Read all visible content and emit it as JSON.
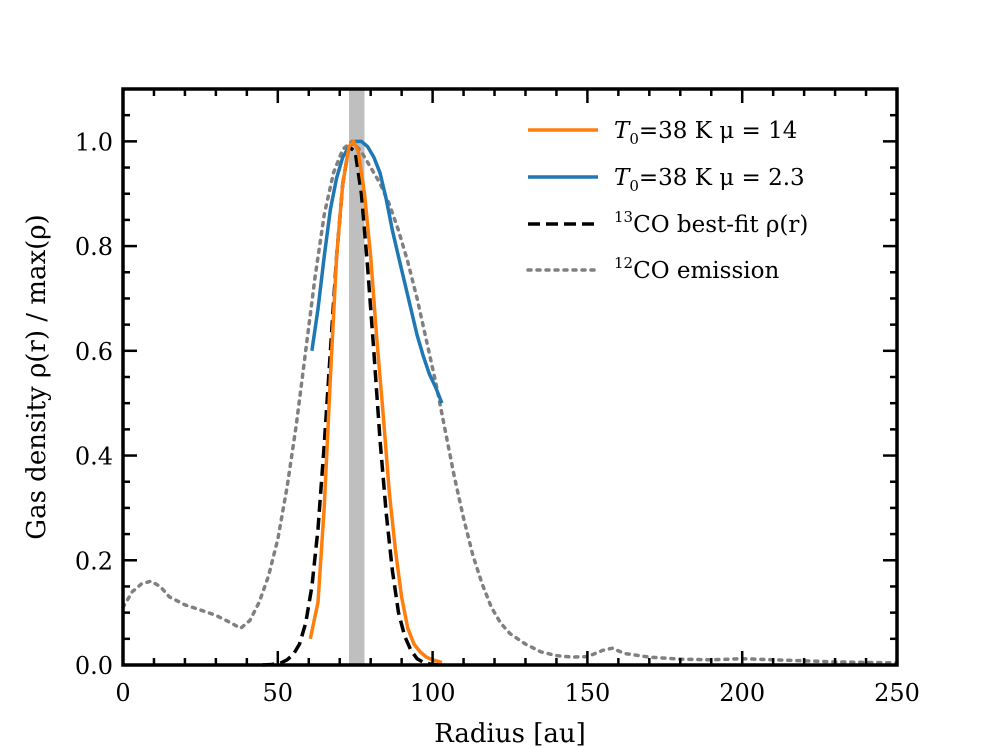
{
  "chart_data": {
    "type": "line",
    "xlabel": "Radius [au]",
    "ylabel": "Gas density ρ(r) / max(ρ)",
    "xlim": [
      0,
      250
    ],
    "ylim": [
      0,
      1.1
    ],
    "x_ticks": [
      0,
      50,
      100,
      150,
      200,
      250
    ],
    "x_tick_labels": [
      "0",
      "50",
      "100",
      "150",
      "200",
      "250"
    ],
    "y_ticks": [
      0.0,
      0.2,
      0.4,
      0.6,
      0.8,
      1.0
    ],
    "y_tick_labels": [
      "0.0",
      "0.2",
      "0.4",
      "0.6",
      "0.8",
      "1.0"
    ],
    "legend_position": "top-right",
    "shaded_band": {
      "x_from": 73,
      "x_to": 78,
      "color": "#bfbfbf"
    },
    "series": [
      {
        "name": "T0=38 K μ = 14",
        "legend": {
          "main": "T",
          "sub": "0",
          "rest": "=38 K μ = 14"
        },
        "color": "#ff7f0e",
        "style": "solid",
        "x": [
          60.5,
          63,
          65,
          67,
          69,
          71,
          73,
          74.5,
          76,
          78,
          80,
          82,
          84,
          86,
          88,
          90,
          92,
          94,
          96,
          98,
          100,
          103
        ],
        "y": [
          0.05,
          0.12,
          0.3,
          0.55,
          0.78,
          0.92,
          0.99,
          1.0,
          0.98,
          0.9,
          0.78,
          0.62,
          0.48,
          0.33,
          0.22,
          0.13,
          0.07,
          0.04,
          0.025,
          0.015,
          0.01,
          0.005
        ]
      },
      {
        "name": "T0=38 K μ = 2.3",
        "legend": {
          "main": "T",
          "sub": "0",
          "rest": "=38 K μ = 2.3"
        },
        "color": "#1f77b4",
        "style": "solid",
        "x": [
          61,
          63,
          65,
          67,
          69,
          71,
          73,
          75,
          77,
          79,
          81,
          83,
          85,
          87,
          89,
          91,
          93,
          95,
          97,
          99,
          101,
          103
        ],
        "y": [
          0.6,
          0.68,
          0.78,
          0.87,
          0.93,
          0.97,
          0.99,
          1.0,
          1.0,
          0.99,
          0.97,
          0.94,
          0.89,
          0.83,
          0.78,
          0.73,
          0.68,
          0.63,
          0.59,
          0.555,
          0.53,
          0.5
        ]
      },
      {
        "name": "13CO best-fit ρ(r)",
        "legend": {
          "sup": "13",
          "rest": "CO best-fit ρ(r)"
        },
        "color": "#000000",
        "style": "dashed",
        "x": [
          45,
          48,
          51,
          53,
          55,
          57,
          59,
          61,
          63,
          65,
          67,
          69,
          71,
          73,
          75,
          77,
          79,
          81,
          83,
          85,
          87,
          89,
          91,
          93,
          95,
          97,
          99,
          102
        ],
        "y": [
          0.0,
          0.001,
          0.004,
          0.01,
          0.02,
          0.04,
          0.08,
          0.15,
          0.26,
          0.42,
          0.6,
          0.78,
          0.92,
          0.99,
          0.98,
          0.9,
          0.76,
          0.6,
          0.43,
          0.29,
          0.18,
          0.1,
          0.055,
          0.028,
          0.012,
          0.005,
          0.002,
          0.0
        ]
      },
      {
        "name": "12CO emission",
        "legend": {
          "sup": "12",
          "rest": "CO emission"
        },
        "color": "#808080",
        "style": "dotted",
        "x": [
          0,
          3,
          6,
          9,
          12,
          15,
          20,
          25,
          30,
          35,
          38,
          41,
          44,
          47,
          50,
          53,
          56,
          59,
          62,
          65,
          68,
          71,
          74,
          77,
          80,
          83,
          86,
          89,
          92,
          95,
          98,
          101,
          104,
          107,
          110,
          113,
          116,
          119,
          122,
          125,
          130,
          135,
          140,
          145,
          150,
          155,
          158,
          162,
          170,
          180,
          190,
          200,
          210,
          220,
          230,
          240,
          250
        ],
        "y": [
          0.11,
          0.14,
          0.155,
          0.16,
          0.15,
          0.13,
          0.115,
          0.105,
          0.095,
          0.08,
          0.07,
          0.085,
          0.12,
          0.17,
          0.24,
          0.34,
          0.46,
          0.6,
          0.74,
          0.86,
          0.94,
          0.985,
          1.0,
          0.98,
          0.95,
          0.92,
          0.88,
          0.83,
          0.77,
          0.7,
          0.62,
          0.54,
          0.45,
          0.36,
          0.28,
          0.21,
          0.155,
          0.11,
          0.08,
          0.06,
          0.04,
          0.025,
          0.018,
          0.015,
          0.016,
          0.028,
          0.032,
          0.022,
          0.015,
          0.011,
          0.01,
          0.012,
          0.01,
          0.008,
          0.006,
          0.005,
          0.004
        ]
      }
    ]
  }
}
